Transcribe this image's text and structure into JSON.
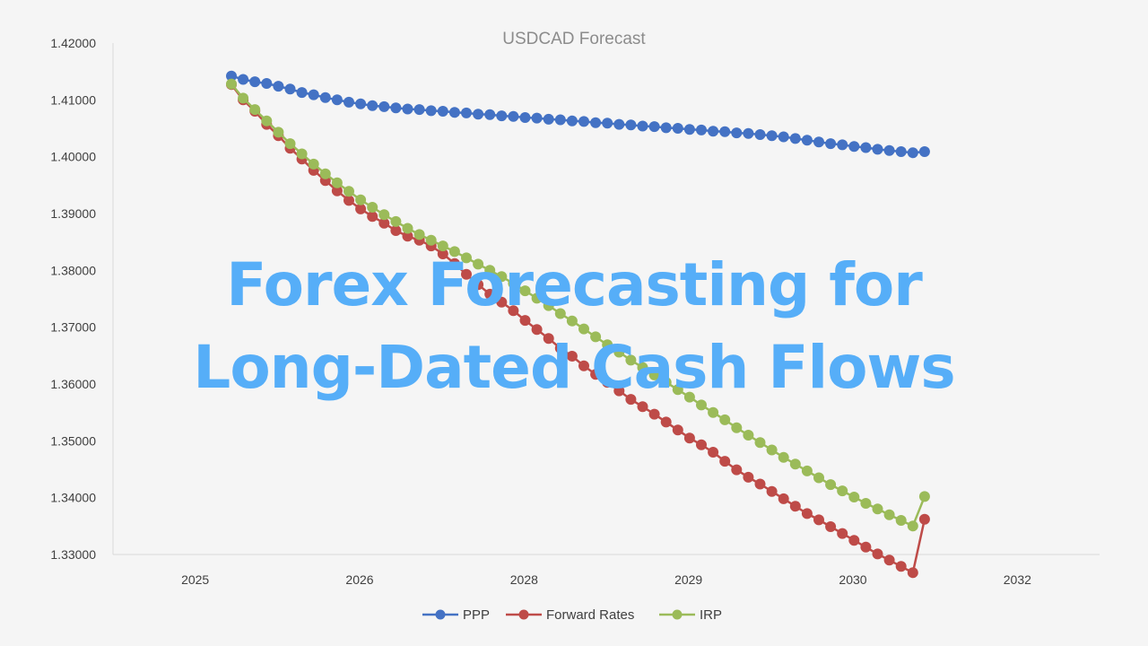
{
  "chart_data": {
    "type": "line",
    "title": "USDCAD Forecast",
    "xlabel": "",
    "ylabel": "",
    "ylim": [
      1.33,
      1.42
    ],
    "y_ticks": [
      "1.42000",
      "1.41000",
      "1.40000",
      "1.39000",
      "1.38000",
      "1.37000",
      "1.36000",
      "1.35000",
      "1.34000",
      "1.33000"
    ],
    "x_ticks": [
      "2025",
      "2026",
      "2028",
      "2029",
      "2030",
      "2032"
    ],
    "point_count": 60,
    "legend_position": "bottom",
    "grid": false,
    "series": [
      {
        "name": "PPP",
        "color": "#4472c4",
        "values": [
          1.4142,
          1.4136,
          1.4132,
          1.4129,
          1.4124,
          1.4119,
          1.4113,
          1.4109,
          1.4104,
          1.41,
          1.4096,
          1.4093,
          1.409,
          1.4088,
          1.4086,
          1.4084,
          1.4083,
          1.4081,
          1.408,
          1.4078,
          1.4077,
          1.4075,
          1.4074,
          1.4072,
          1.4071,
          1.4069,
          1.4068,
          1.4066,
          1.4065,
          1.4063,
          1.4062,
          1.406,
          1.4059,
          1.4057,
          1.4056,
          1.4054,
          1.4053,
          1.4051,
          1.405,
          1.4048,
          1.4047,
          1.4045,
          1.4044,
          1.4042,
          1.4041,
          1.4039,
          1.4037,
          1.4035,
          1.4032,
          1.4029,
          1.4026,
          1.4023,
          1.4021,
          1.4018,
          1.4016,
          1.4013,
          1.4011,
          1.4009,
          1.4007,
          1.4009
        ]
      },
      {
        "name": "Forward Rates",
        "color": "#be4b48",
        "values": [
          1.4127,
          1.41,
          1.408,
          1.4057,
          1.4037,
          1.4015,
          1.3996,
          1.3976,
          1.3958,
          1.394,
          1.3923,
          1.3908,
          1.3895,
          1.3883,
          1.387,
          1.386,
          1.3853,
          1.3843,
          1.3829,
          1.3812,
          1.3793,
          1.3775,
          1.3758,
          1.3744,
          1.3729,
          1.3712,
          1.3696,
          1.368,
          1.3663,
          1.3649,
          1.3632,
          1.3617,
          1.3603,
          1.3588,
          1.3573,
          1.356,
          1.3547,
          1.3533,
          1.3519,
          1.3505,
          1.3493,
          1.348,
          1.3464,
          1.3449,
          1.3436,
          1.3424,
          1.3411,
          1.3398,
          1.3385,
          1.3372,
          1.3361,
          1.3349,
          1.3337,
          1.3325,
          1.3313,
          1.3301,
          1.329,
          1.3279,
          1.3268,
          1.3362
        ]
      },
      {
        "name": "IRP",
        "color": "#9bbb59",
        "values": [
          1.4128,
          1.4103,
          1.4083,
          1.4063,
          1.4043,
          1.4023,
          1.4005,
          1.3987,
          1.397,
          1.3954,
          1.3939,
          1.3924,
          1.3911,
          1.3898,
          1.3886,
          1.3874,
          1.3863,
          1.3853,
          1.3843,
          1.3833,
          1.3822,
          1.3811,
          1.38,
          1.3789,
          1.3777,
          1.3764,
          1.3751,
          1.3738,
          1.3724,
          1.3711,
          1.3697,
          1.3683,
          1.3669,
          1.3656,
          1.3642,
          1.3629,
          1.3616,
          1.3603,
          1.359,
          1.3577,
          1.3563,
          1.355,
          1.3537,
          1.3523,
          1.351,
          1.3497,
          1.3484,
          1.3471,
          1.3459,
          1.3447,
          1.3435,
          1.3423,
          1.3412,
          1.3401,
          1.339,
          1.338,
          1.337,
          1.336,
          1.335,
          1.3402
        ]
      }
    ]
  },
  "overlay": {
    "line1": "Forex Forecasting for",
    "line2": "Long-Dated Cash Flows"
  }
}
